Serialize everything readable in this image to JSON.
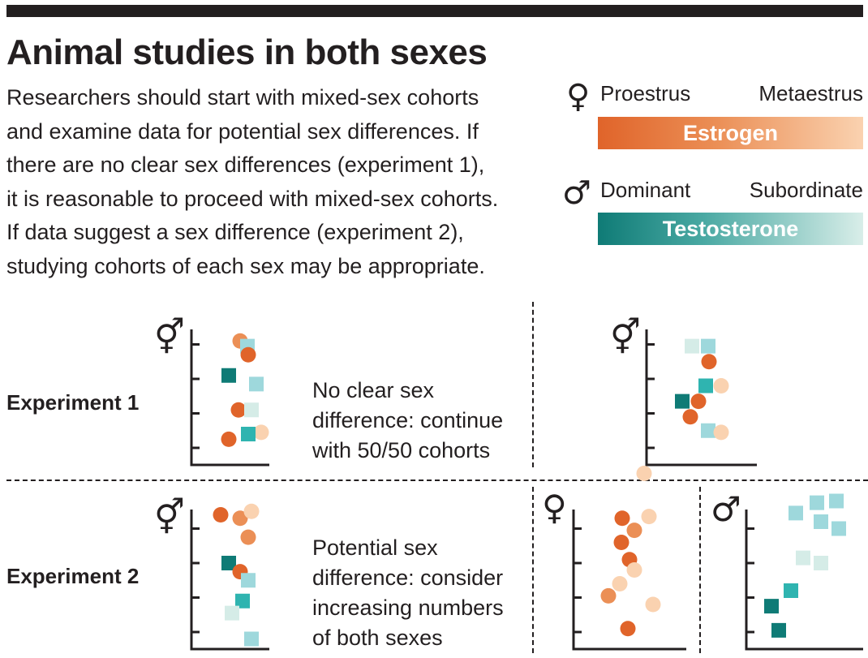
{
  "title": "Animal studies in both sexes",
  "description_lines": [
    "Researchers should start with mixed-sex cohorts",
    "and examine data for potential sex differences. If",
    "there are no clear sex differences (experiment 1),",
    "it is reasonable to proceed with mixed-sex cohorts.",
    "If data suggest a sex difference (experiment 2),",
    "studying cohorts of each sex may be appropriate."
  ],
  "legend": {
    "female": {
      "symbol": "♀",
      "left_label": "Proestrus",
      "right_label": "Metaestrus",
      "bar_label": "Estrogen"
    },
    "male": {
      "symbol": "♂",
      "left_label": "Dominant",
      "right_label": "Subordinate",
      "bar_label": "Testosterone"
    }
  },
  "colors": {
    "female_dark": "#e0642a",
    "female_mid": "#eb8f56",
    "female_light": "#fad2b0",
    "male_dark": "#0f7b76",
    "male_mid": "#2fb4b0",
    "male_light": "#9ed8dc",
    "male_pale": "#d5ece7",
    "ink": "#231f20"
  },
  "symbols": {
    "mixed": "⚥",
    "female": "♀",
    "male": "♂"
  },
  "experiment1": {
    "label": "Experiment 1",
    "note_lines": [
      "No clear sex",
      "difference: continue",
      "with 50/50 cohorts"
    ]
  },
  "experiment2": {
    "label": "Experiment 2",
    "note_lines": [
      "Potential sex",
      "difference: consider",
      "increasing numbers",
      "of both sexes"
    ]
  },
  "plots": [
    {
      "id": "exp1-mixed",
      "symbol": "mixed",
      "points": [
        {
          "shape": "circle",
          "tone": "female_mid",
          "value": 3.1
        },
        {
          "shape": "square",
          "tone": "male_light",
          "value": 2.95
        },
        {
          "shape": "circle",
          "tone": "female_dark",
          "value": 2.7
        },
        {
          "shape": "square",
          "tone": "male_dark",
          "value": 2.1
        },
        {
          "shape": "square",
          "tone": "male_light",
          "value": 1.85
        },
        {
          "shape": "circle",
          "tone": "female_dark",
          "value": 1.1
        },
        {
          "shape": "square",
          "tone": "male_pale",
          "value": 1.1
        },
        {
          "shape": "circle",
          "tone": "female_light",
          "value": 0.45
        },
        {
          "shape": "square",
          "tone": "male_mid",
          "value": 0.4
        },
        {
          "shape": "circle",
          "tone": "female_dark",
          "value": 0.25
        }
      ]
    },
    {
      "id": "exp1-mixed-b",
      "symbol": "mixed",
      "points": [
        {
          "shape": "square",
          "tone": "male_pale",
          "value": 2.95
        },
        {
          "shape": "square",
          "tone": "male_light",
          "value": 2.95
        },
        {
          "shape": "circle",
          "tone": "female_dark",
          "value": 2.5
        },
        {
          "shape": "square",
          "tone": "male_mid",
          "value": 1.8
        },
        {
          "shape": "circle",
          "tone": "female_light",
          "value": 1.8
        },
        {
          "shape": "square",
          "tone": "male_dark",
          "value": 1.35
        },
        {
          "shape": "circle",
          "tone": "female_dark",
          "value": 1.35
        },
        {
          "shape": "circle",
          "tone": "female_dark",
          "value": 0.9
        },
        {
          "shape": "square",
          "tone": "male_light",
          "value": 0.5
        },
        {
          "shape": "circle",
          "tone": "female_light",
          "value": 0.45
        }
      ]
    },
    {
      "id": "exp2-mixed",
      "symbol": "mixed",
      "points": [
        {
          "shape": "circle",
          "tone": "female_dark",
          "value": 3.4
        },
        {
          "shape": "circle",
          "tone": "female_mid",
          "value": 3.3
        },
        {
          "shape": "circle",
          "tone": "female_light",
          "value": 3.5
        },
        {
          "shape": "circle",
          "tone": "female_mid",
          "value": 2.75
        },
        {
          "shape": "square",
          "tone": "male_dark",
          "value": 2.0
        },
        {
          "shape": "circle",
          "tone": "female_dark",
          "value": 1.75
        },
        {
          "shape": "square",
          "tone": "male_light",
          "value": 1.5
        },
        {
          "shape": "square",
          "tone": "male_mid",
          "value": 0.9
        },
        {
          "shape": "square",
          "tone": "male_pale",
          "value": 0.55
        },
        {
          "shape": "square",
          "tone": "male_light",
          "value": -0.2
        }
      ]
    },
    {
      "id": "exp2-female",
      "symbol": "female",
      "points": [
        {
          "shape": "circle",
          "tone": "female_light",
          "value": 4.6
        },
        {
          "shape": "circle",
          "tone": "female_dark",
          "value": 3.3
        },
        {
          "shape": "circle",
          "tone": "female_light",
          "value": 3.35
        },
        {
          "shape": "circle",
          "tone": "female_mid",
          "value": 2.95
        },
        {
          "shape": "circle",
          "tone": "female_dark",
          "value": 2.6
        },
        {
          "shape": "circle",
          "tone": "female_dark",
          "value": 2.1
        },
        {
          "shape": "circle",
          "tone": "female_light",
          "value": 1.8
        },
        {
          "shape": "circle",
          "tone": "female_light",
          "value": 1.4
        },
        {
          "shape": "circle",
          "tone": "female_mid",
          "value": 1.05
        },
        {
          "shape": "circle",
          "tone": "female_light",
          "value": 0.8
        },
        {
          "shape": "circle",
          "tone": "female_dark",
          "value": 0.1
        }
      ]
    },
    {
      "id": "exp2-male",
      "symbol": "male",
      "points": [
        {
          "shape": "square",
          "tone": "male_light",
          "value": 3.75
        },
        {
          "shape": "square",
          "tone": "male_light",
          "value": 3.8
        },
        {
          "shape": "square",
          "tone": "male_light",
          "value": 3.45
        },
        {
          "shape": "square",
          "tone": "male_light",
          "value": 3.2
        },
        {
          "shape": "square",
          "tone": "male_light",
          "value": 3.0
        },
        {
          "shape": "square",
          "tone": "male_pale",
          "value": 2.15
        },
        {
          "shape": "square",
          "tone": "male_pale",
          "value": 2.0
        },
        {
          "shape": "square",
          "tone": "male_mid",
          "value": 1.2
        },
        {
          "shape": "square",
          "tone": "male_dark",
          "value": 0.75
        },
        {
          "shape": "square",
          "tone": "male_dark",
          "value": 0.05
        }
      ]
    }
  ]
}
